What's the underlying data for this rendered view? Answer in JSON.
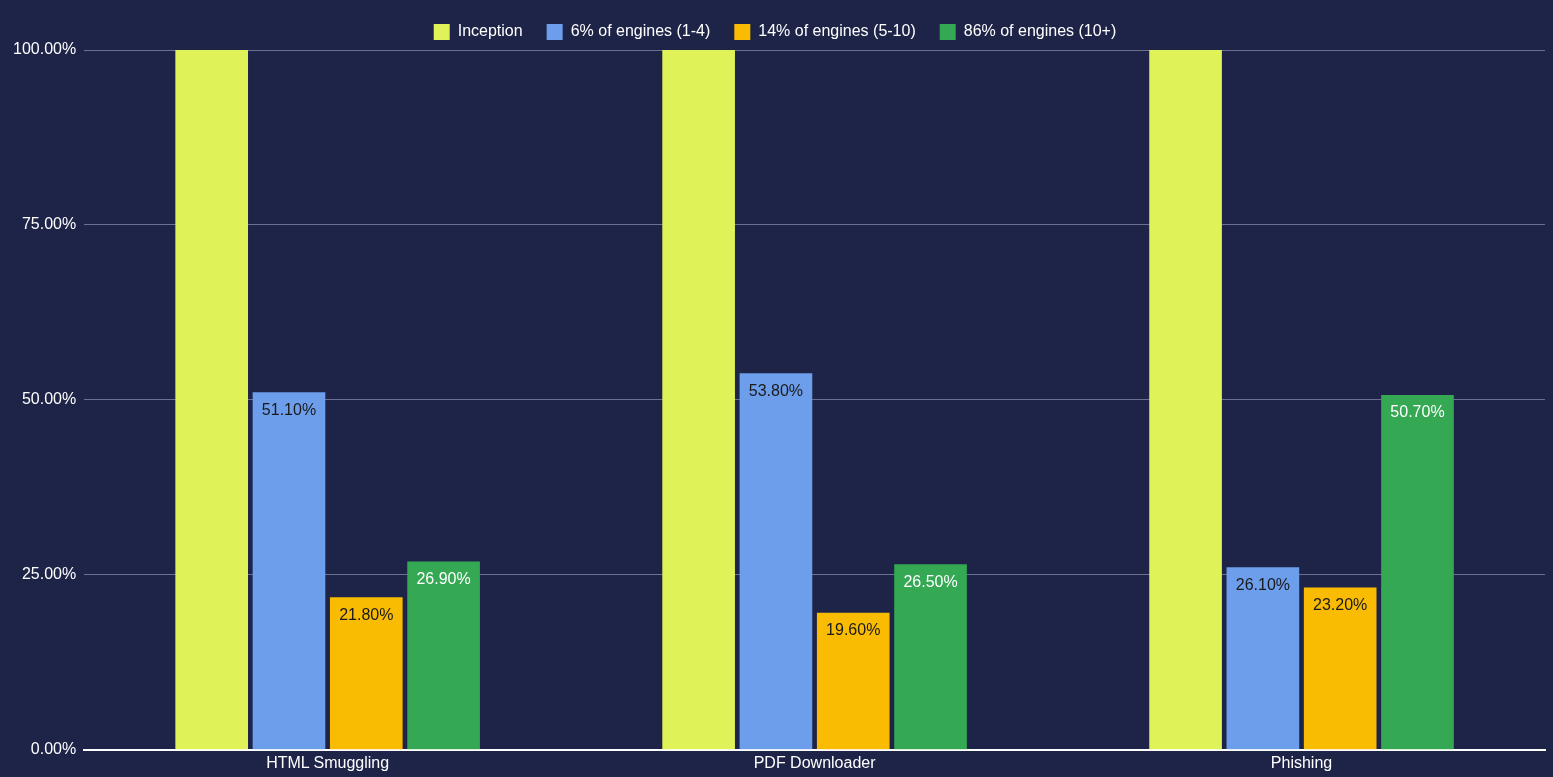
{
  "chart_data": {
    "type": "bar",
    "categories": [
      "HTML Smuggling",
      "PDF Downloader",
      "Phishing"
    ],
    "series": [
      {
        "name": "Inception",
        "color": "#dff257",
        "values": [
          100,
          100,
          100
        ],
        "value_labels": [
          null,
          null,
          null
        ]
      },
      {
        "name": "6% of engines (1-4)",
        "color": "#6d9eeb",
        "values": [
          51.1,
          53.8,
          26.1
        ],
        "value_labels": [
          "51.10%",
          "53.80%",
          "26.10%"
        ]
      },
      {
        "name": "14% of engines (5-10)",
        "color": "#f9bc02",
        "values": [
          21.8,
          19.6,
          23.2
        ],
        "value_labels": [
          "21.80%",
          "19.60%",
          "23.20%"
        ]
      },
      {
        "name": "86% of engines (10+)",
        "color": "#34a853",
        "values": [
          26.9,
          26.5,
          50.7
        ],
        "value_labels": [
          "26.90%",
          "26.50%",
          "50.70%"
        ]
      }
    ],
    "ylim": [
      0,
      100
    ],
    "yticks": [
      {
        "value": 0,
        "label": "0.00%"
      },
      {
        "value": 25,
        "label": "25.00%"
      },
      {
        "value": 50,
        "label": "50.00%"
      },
      {
        "value": 75,
        "label": "75.00%"
      },
      {
        "value": 100,
        "label": "100.00%"
      }
    ],
    "grid": "y",
    "legend": "top"
  }
}
